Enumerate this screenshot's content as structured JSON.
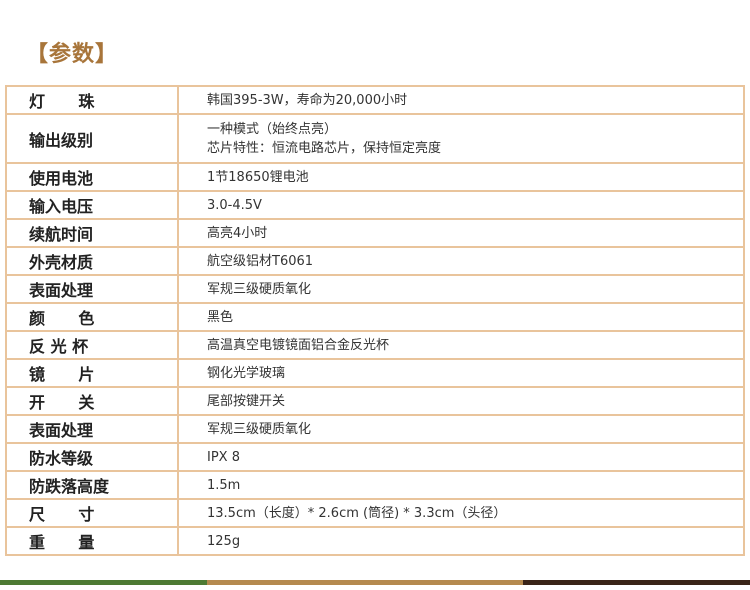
{
  "title": "【参数】",
  "rows": [
    {
      "label": "灯      珠",
      "value": [
        "韩国395-3W，寿命为20,000小时"
      ]
    },
    {
      "label": "输出级别",
      "value": [
        "一种模式（始终点亮）",
        "芯片特性：恒流电路芯片，保持恒定亮度"
      ]
    },
    {
      "label": "使用电池",
      "value": [
        "1节18650锂电池"
      ]
    },
    {
      "label": "输入电压",
      "value": [
        "3.0-4.5V"
      ]
    },
    {
      "label": "续航时间",
      "value": [
        "高亮4小时"
      ]
    },
    {
      "label": "外壳材质",
      "value": [
        "航空级铝材T6061"
      ]
    },
    {
      "label": "表面处理",
      "value": [
        "军规三级硬质氧化"
      ]
    },
    {
      "label": "颜      色",
      "value": [
        "黑色"
      ]
    },
    {
      "label": "反 光 杯",
      "value": [
        "高温真空电镀镜面铝合金反光杯"
      ]
    },
    {
      "label": "镜      片",
      "value": [
        "钢化光学玻璃"
      ]
    },
    {
      "label": "开      关",
      "value": [
        "尾部按键开关"
      ]
    },
    {
      "label": "表面处理",
      "value": [
        "军规三级硬质氧化"
      ]
    },
    {
      "label": "防水等级",
      "value": [
        "IPX 8"
      ]
    },
    {
      "label": "防跌落高度",
      "value": [
        "1.5m"
      ]
    },
    {
      "label": "尺      寸",
      "value": [
        "13.5cm（长度）* 2.6cm (筒径) * 3.3cm（头径）"
      ]
    },
    {
      "label": "重      量",
      "value": [
        "125g"
      ]
    }
  ],
  "colors": {
    "title": "#a8753a",
    "border": "#e9c49c",
    "bar_green": "#4d7a33",
    "bar_tan": "#b58a4f",
    "bar_dark": "#3a2418"
  }
}
